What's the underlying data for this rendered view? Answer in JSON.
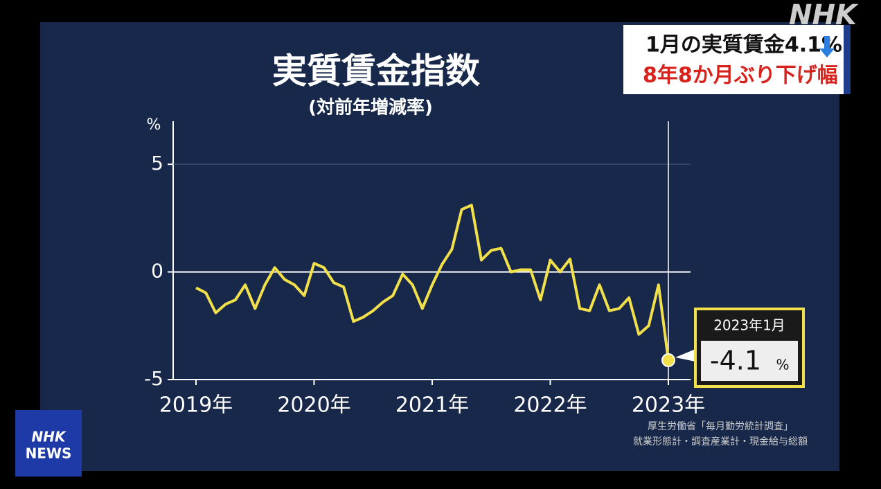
{
  "chart_data": {
    "type": "line",
    "title": "実質賃金指数",
    "subtitle": "(対前年増減率)",
    "y_unit": "%",
    "categories": [
      "2019年",
      null,
      null,
      null,
      null,
      null,
      null,
      null,
      null,
      null,
      null,
      null,
      "2020年",
      null,
      null,
      null,
      null,
      null,
      null,
      null,
      null,
      null,
      null,
      null,
      "2021年",
      null,
      null,
      null,
      null,
      null,
      null,
      null,
      null,
      null,
      null,
      null,
      "2022年",
      null,
      null,
      null,
      null,
      null,
      null,
      null,
      null,
      null,
      null,
      null,
      "2023年"
    ],
    "series": [
      {
        "color": "#f2e04a",
        "values": [
          -0.74,
          -0.97,
          -1.9,
          -1.5,
          -1.3,
          -0.6,
          -1.7,
          -0.6,
          0.2,
          -0.35,
          -0.6,
          -1.1,
          0.4,
          0.2,
          -0.5,
          -0.7,
          -2.3,
          -2.1,
          -1.8,
          -1.4,
          -1.1,
          -0.1,
          -0.6,
          -1.7,
          -0.6,
          0.35,
          1.05,
          2.9,
          3.1,
          0.55,
          1.0,
          1.1,
          0.0,
          0.1,
          0.1,
          -1.3,
          0.55,
          0.0,
          0.6,
          -1.7,
          -1.8,
          -0.6,
          -1.8,
          -1.7,
          -1.2,
          -2.9,
          -2.5,
          -0.6,
          -4.1
        ]
      }
    ],
    "ylim": [
      -5,
      7
    ],
    "yticks": [
      -5,
      0,
      5
    ],
    "grid": true,
    "annotation": {
      "label": "2023年1月",
      "value_label": "-4.1",
      "unit": "%"
    }
  },
  "headline": {
    "line1": "1月の実質賃金4.1%",
    "line2": "8年8か月ぶり下げ幅"
  },
  "logo": "NHK",
  "badge": {
    "line1": "NHK",
    "line2": "NEWS"
  },
  "source": {
    "line1": "厚生労働省「毎月勤労統計調査」",
    "line2": "就業形態計・調査産業計・現金給与総額"
  }
}
